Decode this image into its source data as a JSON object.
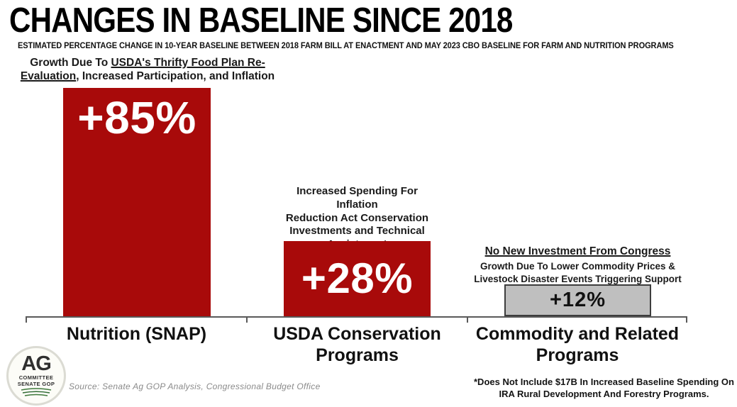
{
  "chart_data": {
    "type": "bar",
    "title": "CHANGES IN BASELINE SINCE 2018",
    "subtitle": "ESTIMATED PERCENTAGE CHANGE IN 10-YEAR BASELINE BETWEEN 2018 FARM BILL AT ENACTMENT AND MAY 2023 CBO BASELINE FOR FARM AND NUTRITION PROGRAMS",
    "categories": [
      "Nutrition (SNAP)",
      "USDA Conservation\nPrograms",
      "Commodity and Related\nPrograms"
    ],
    "values": [
      85,
      28,
      12
    ],
    "data_labels": [
      "+85%",
      "+28%",
      "+12%"
    ],
    "bar_colors": [
      "#A80A0A",
      "#A80A0A",
      "#BFBFBF"
    ],
    "label_colors": [
      "#FFFFFF",
      "#FFFFFF",
      "#111111"
    ],
    "xlabel": "",
    "ylabel": "",
    "ylim": [
      0,
      90
    ],
    "grid": false,
    "legend": "none",
    "annotations": {
      "nutrition": {
        "prefix": "Growth Due To ",
        "emphasis": "USDA's Thrifty Food Plan Re-Evaluation",
        "suffix": ", Increased Participation, and Inflation"
      },
      "conservation": "Increased Spending For Inflation\nReduction Act Conservation\nInvestments and Technical\nAssistance*",
      "commodity_heading": "No New Investment From Congress",
      "commodity_body": "Growth Due To Lower Commodity Prices &\nLivestock Disaster Events Triggering Support"
    }
  },
  "footer": {
    "source": "Source: Senate Ag GOP Analysis, Congressional Budget Office",
    "footnote": "*Does Not Include $17B In Increased Baseline Spending On\nIRA Rural Development And Forestry Programs."
  },
  "logo": {
    "acronym": "AG",
    "line2": "COMMITTEE",
    "line3": "SENATE GOP"
  },
  "colors": {
    "bar_red": "#A80A0A",
    "bar_gray": "#BFBFBF",
    "axis_gray": "#595959",
    "logo_green": "#3F7A3C"
  }
}
